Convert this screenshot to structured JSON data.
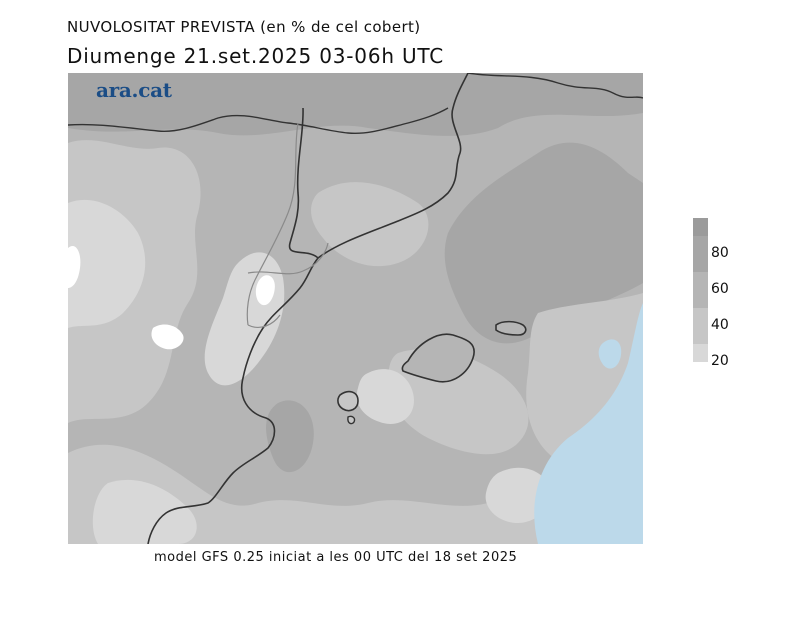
{
  "header": {
    "title": "NUVOLOSITAT PREVISTA (en % de cel cobert)",
    "subtitle": "Diumenge  21.set.2025 03-06h UTC"
  },
  "brand": {
    "logo_text": "ara.cat"
  },
  "legend": {
    "levels": [
      {
        "label": "80",
        "color": "#a6a6a6"
      },
      {
        "label": "60",
        "color": "#b5b5b5"
      },
      {
        "label": "40",
        "color": "#c6c6c6"
      },
      {
        "label": "20",
        "color": "#d8d8d8"
      }
    ],
    "top_color": "#9b9b9b"
  },
  "map": {
    "colors": {
      "overcast": "#a6a6a6",
      "mostly_cloudy": "#b5b5b5",
      "partly_cloudy": "#c6c6c6",
      "few_clouds": "#d8d8d8",
      "clear_land": "#ffffff",
      "clear_sea": "#bcd9ea",
      "coast": "#333333",
      "border": "#8a8a8a"
    }
  },
  "footer": {
    "text": "model GFS 0.25 iniciat a les 00 UTC del 18 set 2025"
  }
}
